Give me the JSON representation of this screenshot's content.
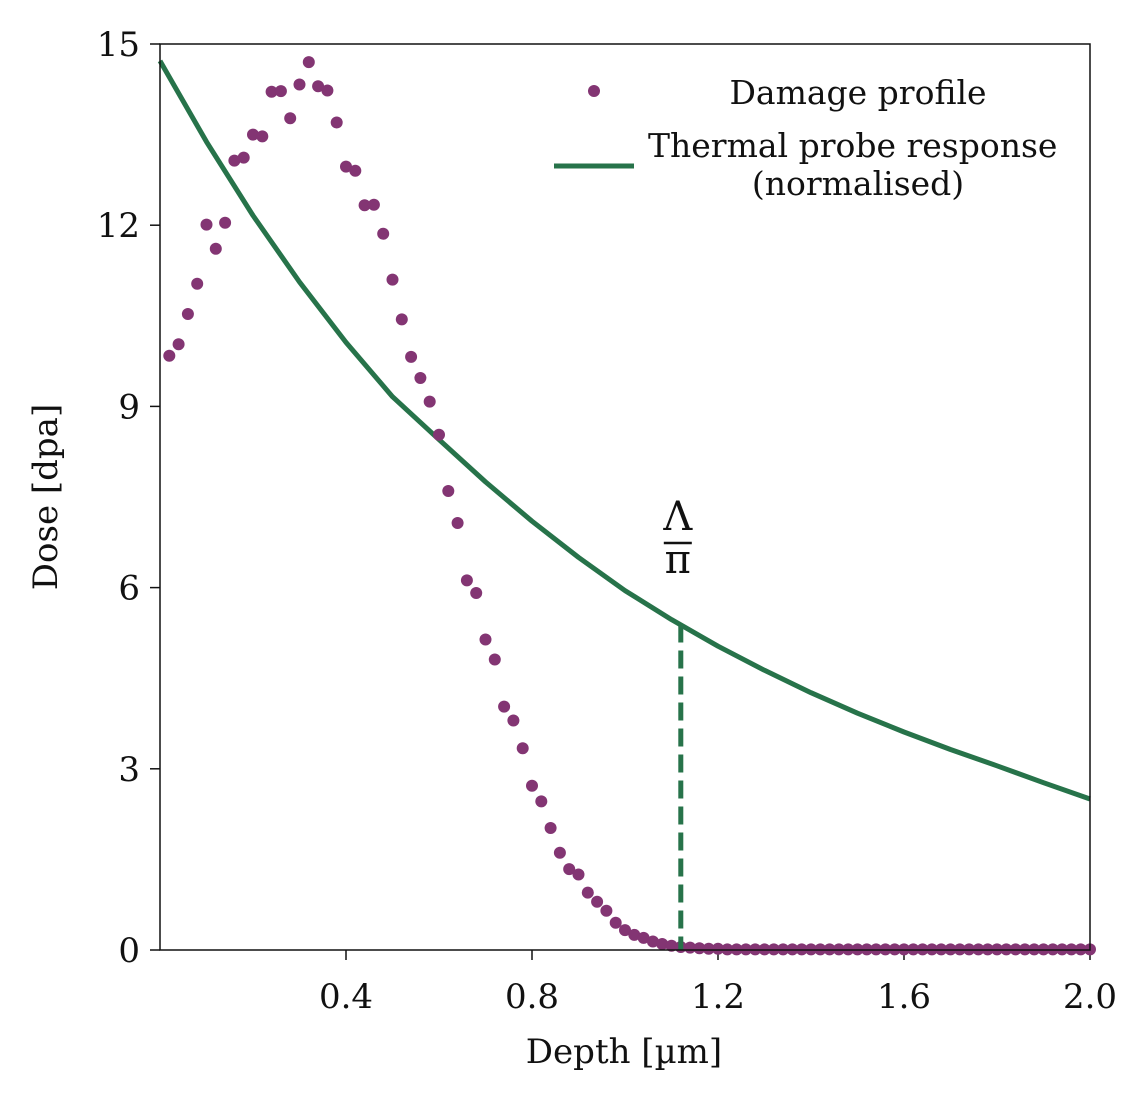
{
  "chart_data": {
    "type": "scatter",
    "xlabel": "Depth [µm]",
    "ylabel": "Dose [dpa]",
    "xlim": [
      0,
      2.0
    ],
    "ylim": [
      0,
      15
    ],
    "xticks": [
      0.4,
      0.8,
      1.2,
      1.6,
      2.0
    ],
    "xtick_labels": [
      "0.4",
      "0.8",
      "1.2",
      "1.6",
      "2.0"
    ],
    "yticks": [
      0,
      3,
      6,
      9,
      12,
      15
    ],
    "ytick_labels": [
      "0",
      "3",
      "6",
      "9",
      "12",
      "15"
    ],
    "grid": false,
    "legend_position": "top-right",
    "colors": {
      "damage": "#833573",
      "thermal": "#27734a"
    },
    "series": [
      {
        "name": "Damage profile",
        "kind": "scatter",
        "x": [
          0.02,
          0.04,
          0.06,
          0.08,
          0.1,
          0.12,
          0.14,
          0.16,
          0.18,
          0.2,
          0.22,
          0.24,
          0.26,
          0.28,
          0.3,
          0.32,
          0.34,
          0.36,
          0.38,
          0.4,
          0.42,
          0.44,
          0.46,
          0.48,
          0.5,
          0.52,
          0.54,
          0.56,
          0.58,
          0.6,
          0.62,
          0.64,
          0.66,
          0.68,
          0.7,
          0.72,
          0.74,
          0.76,
          0.78,
          0.8,
          0.82,
          0.84,
          0.86,
          0.88,
          0.9,
          0.92,
          0.94,
          0.96,
          0.98,
          1.0,
          1.02,
          1.04,
          1.06,
          1.08,
          1.1,
          1.12,
          1.14,
          1.16,
          1.18,
          1.2,
          1.22,
          1.24,
          1.26,
          1.28,
          1.3,
          1.32,
          1.34,
          1.36,
          1.38,
          1.4,
          1.42,
          1.44,
          1.46,
          1.48,
          1.5,
          1.52,
          1.54,
          1.56,
          1.58,
          1.6,
          1.62,
          1.64,
          1.66,
          1.68,
          1.7,
          1.72,
          1.74,
          1.76,
          1.78,
          1.8,
          1.82,
          1.84,
          1.86,
          1.88,
          1.9,
          1.92,
          1.94,
          1.96,
          1.98,
          2.0
        ],
        "y": [
          9.84,
          10.03,
          10.53,
          11.03,
          12.01,
          11.61,
          12.04,
          13.07,
          13.12,
          13.5,
          13.47,
          14.21,
          14.22,
          13.77,
          14.33,
          14.7,
          14.3,
          14.23,
          13.7,
          12.97,
          12.9,
          12.33,
          12.34,
          11.86,
          11.1,
          10.44,
          9.82,
          9.47,
          9.08,
          8.53,
          7.6,
          7.07,
          6.12,
          5.91,
          5.14,
          4.81,
          4.03,
          3.8,
          3.34,
          2.72,
          2.46,
          2.02,
          1.61,
          1.34,
          1.25,
          0.95,
          0.8,
          0.65,
          0.45,
          0.33,
          0.25,
          0.2,
          0.14,
          0.1,
          0.07,
          0.05,
          0.04,
          0.03,
          0.02,
          0.02,
          0.01,
          0.01,
          0.01,
          0.01,
          0.01,
          0.01,
          0.01,
          0.01,
          0.01,
          0.01,
          0.01,
          0.01,
          0.01,
          0.01,
          0.01,
          0.01,
          0.01,
          0.01,
          0.01,
          0.01,
          0.01,
          0.01,
          0.01,
          0.01,
          0.01,
          0.01,
          0.01,
          0.01,
          0.01,
          0.01,
          0.01,
          0.01,
          0.01,
          0.01,
          0.01,
          0.01,
          0.01,
          0.01,
          0.01,
          0.01
        ]
      },
      {
        "name": "Thermal probe response\n(normalised)",
        "kind": "line",
        "x": [
          0.0,
          0.1,
          0.2,
          0.3,
          0.4,
          0.5,
          0.6,
          0.7,
          0.8,
          0.9,
          1.0,
          1.1,
          1.2,
          1.3,
          1.4,
          1.5,
          1.6,
          1.7,
          1.8,
          1.9,
          2.0
        ],
        "y": [
          14.72,
          13.38,
          12.16,
          11.06,
          10.06,
          9.16,
          8.45,
          7.75,
          7.1,
          6.5,
          5.95,
          5.47,
          5.03,
          4.63,
          4.26,
          3.92,
          3.61,
          3.32,
          3.05,
          2.77,
          2.5
        ]
      }
    ],
    "annotations": [
      {
        "text_num": "Λ",
        "text_den": "π",
        "x": 1.12,
        "y_top": 5.39,
        "y_bottom": 0
      }
    ]
  }
}
